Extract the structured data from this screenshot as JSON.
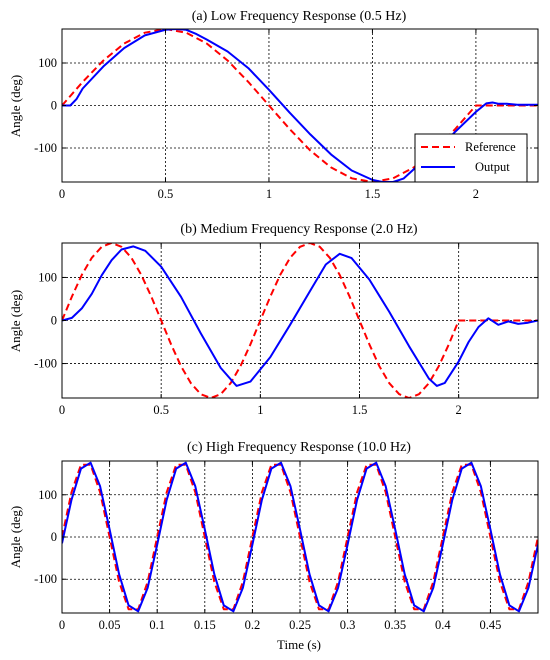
{
  "figure": {
    "colors": {
      "reference": "#ff0000",
      "output": "#0000ff",
      "grid": "#000000",
      "axes": "#000000",
      "background": "#ffffff"
    }
  },
  "chart_data": [
    {
      "type": "line",
      "title": "(a) Low Frequency Response (0.5 Hz)",
      "xlabel": "",
      "ylabel": "Angle (deg)",
      "xlim": [
        0,
        2.3
      ],
      "ylim": [
        -180,
        180
      ],
      "xticks": [
        0,
        0.5,
        1,
        1.5,
        2
      ],
      "xtick_labels": [
        "0",
        "0.5",
        "1",
        "1.5",
        "2"
      ],
      "yticks": [
        100,
        0,
        -100
      ],
      "ytick_labels": [
        "100",
        "0",
        "-100"
      ],
      "grid": true,
      "legend": {
        "placement": "lower-right",
        "entries": [
          "Reference",
          "Output"
        ]
      },
      "series": [
        {
          "name": "Reference",
          "style": "dashed",
          "color": "#ff0000",
          "x": [
            0,
            0.1,
            0.2,
            0.3,
            0.4,
            0.5,
            0.6,
            0.7,
            0.8,
            0.9,
            1.0,
            1.1,
            1.2,
            1.3,
            1.4,
            1.5,
            1.6,
            1.7,
            1.8,
            1.9,
            2.0,
            2.05,
            2.3
          ],
          "y": [
            0,
            55.6,
            105.8,
            145.6,
            171.2,
            180,
            171.2,
            145.6,
            105.8,
            55.6,
            0,
            -55.6,
            -105.8,
            -145.6,
            -171.2,
            -180,
            -171.2,
            -145.6,
            -105.8,
            -55.6,
            0,
            0,
            0
          ]
        },
        {
          "name": "Output",
          "style": "solid",
          "color": "#0000ff",
          "x": [
            0,
            0.04,
            0.07,
            0.1,
            0.2,
            0.3,
            0.4,
            0.5,
            0.55,
            0.6,
            0.65,
            0.7,
            0.8,
            0.9,
            1.0,
            1.1,
            1.2,
            1.3,
            1.4,
            1.5,
            1.55,
            1.6,
            1.65,
            1.7,
            1.8,
            1.9,
            2.0,
            2.05,
            2.08,
            2.11,
            2.15,
            2.2,
            2.3
          ],
          "y": [
            0,
            0,
            15,
            40,
            92,
            135,
            165,
            178,
            180,
            178,
            168,
            155,
            127,
            88,
            37,
            -17,
            -68,
            -115,
            -153,
            -175,
            -180,
            -180,
            -172,
            -150,
            -110,
            -62,
            -15,
            5,
            7,
            4,
            4,
            2,
            2
          ]
        }
      ]
    },
    {
      "type": "line",
      "title": "(b) Medium Frequency Response (2.0 Hz)",
      "xlabel": "",
      "ylabel": "Angle (deg)",
      "xlim": [
        0,
        2.4
      ],
      "ylim": [
        -180,
        180
      ],
      "xticks": [
        0,
        0.5,
        1,
        1.5,
        2
      ],
      "xtick_labels": [
        "0",
        "0.5",
        "1",
        "1.5",
        "2"
      ],
      "yticks": [
        100,
        0,
        -100
      ],
      "ytick_labels": [
        "100",
        "0",
        "-100"
      ],
      "grid": true,
      "series": [
        {
          "name": "Reference",
          "style": "dashed",
          "color": "#ff0000",
          "x": [
            0,
            0.05,
            0.1,
            0.15,
            0.2,
            0.25,
            0.3,
            0.35,
            0.4,
            0.45,
            0.5,
            0.55,
            0.6,
            0.65,
            0.7,
            0.75,
            0.8,
            0.85,
            0.9,
            0.95,
            1.0,
            1.05,
            1.1,
            1.15,
            1.2,
            1.25,
            1.3,
            1.35,
            1.4,
            1.45,
            1.5,
            1.55,
            1.6,
            1.65,
            1.7,
            1.75,
            1.8,
            1.85,
            1.9,
            1.95,
            2.0,
            2.4
          ],
          "y": [
            0,
            55.6,
            105.8,
            145.6,
            171.2,
            180,
            171.2,
            145.6,
            105.8,
            55.6,
            0,
            -55.6,
            -105.8,
            -145.6,
            -171.2,
            -180,
            -171.2,
            -145.6,
            -105.8,
            -55.6,
            0,
            55.6,
            105.8,
            145.6,
            171.2,
            180,
            171.2,
            145.6,
            105.8,
            55.6,
            0,
            -55.6,
            -105.8,
            -145.6,
            -171.2,
            -180,
            -171.2,
            -145.6,
            -105.8,
            -55.6,
            0,
            0
          ]
        },
        {
          "name": "Output",
          "style": "solid",
          "color": "#0000ff",
          "x": [
            0,
            0.05,
            0.1,
            0.15,
            0.2,
            0.25,
            0.3,
            0.36,
            0.42,
            0.5,
            0.6,
            0.7,
            0.8,
            0.88,
            0.95,
            1.05,
            1.15,
            1.25,
            1.33,
            1.4,
            1.46,
            1.55,
            1.65,
            1.75,
            1.85,
            1.89,
            1.93,
            2.0,
            2.05,
            2.1,
            2.15,
            2.2,
            2.25,
            2.3,
            2.35,
            2.4
          ],
          "y": [
            0,
            6,
            28,
            62,
            105,
            140,
            165,
            172,
            162,
            125,
            55,
            -30,
            -110,
            -152,
            -142,
            -85,
            -10,
            68,
            130,
            155,
            145,
            95,
            20,
            -60,
            -135,
            -152,
            -145,
            -95,
            -50,
            -15,
            5,
            -10,
            -2,
            -8,
            -5,
            0
          ]
        }
      ]
    },
    {
      "type": "line",
      "title": "(c) High Frequency Response (10.0 Hz)",
      "xlabel": "Time (s)",
      "ylabel": "Angle (deg)",
      "xlim": [
        0,
        0.5
      ],
      "ylim": [
        -180,
        180
      ],
      "xticks": [
        0,
        0.05,
        0.1,
        0.15,
        0.2,
        0.25,
        0.3,
        0.35,
        0.4,
        0.45
      ],
      "xtick_labels": [
        "0",
        "0.05",
        "0.1",
        "0.15",
        "0.2",
        "0.25",
        "0.3",
        "0.35",
        "0.4",
        "0.45"
      ],
      "yticks": [
        100,
        0,
        -100
      ],
      "ytick_labels": [
        "100",
        "0",
        "-100"
      ],
      "grid": true,
      "series": [
        {
          "name": "Reference",
          "style": "dashed",
          "color": "#ff0000",
          "x": [
            0,
            0.01,
            0.02,
            0.03,
            0.04,
            0.05,
            0.06,
            0.07,
            0.08,
            0.09,
            0.1,
            0.11,
            0.12,
            0.13,
            0.14,
            0.15,
            0.16,
            0.17,
            0.18,
            0.19,
            0.2,
            0.21,
            0.22,
            0.23,
            0.24,
            0.25,
            0.26,
            0.27,
            0.28,
            0.29,
            0.3,
            0.31,
            0.32,
            0.33,
            0.34,
            0.35,
            0.36,
            0.37,
            0.38,
            0.39,
            0.4,
            0.41,
            0.42,
            0.43,
            0.44,
            0.45,
            0.46,
            0.47,
            0.48,
            0.49,
            0.5
          ],
          "y": [
            0,
            105.8,
            171.2,
            171.2,
            105.8,
            0,
            -105.8,
            -171.2,
            -171.2,
            -105.8,
            0,
            105.8,
            171.2,
            171.2,
            105.8,
            0,
            -105.8,
            -171.2,
            -171.2,
            -105.8,
            0,
            105.8,
            171.2,
            171.2,
            105.8,
            0,
            -105.8,
            -171.2,
            -171.2,
            -105.8,
            0,
            105.8,
            171.2,
            171.2,
            105.8,
            0,
            -105.8,
            -171.2,
            -171.2,
            -105.8,
            0,
            105.8,
            171.2,
            171.2,
            105.8,
            0,
            -105.8,
            -171.2,
            -171.2,
            -105.8,
            0
          ]
        },
        {
          "name": "Output",
          "style": "solid",
          "color": "#0000ff",
          "x": [
            0,
            0.01,
            0.02,
            0.03,
            0.04,
            0.05,
            0.06,
            0.07,
            0.08,
            0.09,
            0.1,
            0.11,
            0.12,
            0.13,
            0.14,
            0.15,
            0.16,
            0.17,
            0.18,
            0.19,
            0.2,
            0.21,
            0.22,
            0.23,
            0.24,
            0.25,
            0.26,
            0.27,
            0.28,
            0.29,
            0.3,
            0.31,
            0.32,
            0.33,
            0.34,
            0.35,
            0.36,
            0.37,
            0.38,
            0.39,
            0.4,
            0.41,
            0.42,
            0.43,
            0.44,
            0.45,
            0.46,
            0.47,
            0.48,
            0.49,
            0.5
          ],
          "y": [
            -15,
            88,
            162,
            176,
            120,
            18,
            -88,
            -162,
            -176,
            -120,
            -18,
            88,
            162,
            176,
            120,
            18,
            -88,
            -162,
            -176,
            -120,
            -18,
            88,
            162,
            176,
            120,
            18,
            -88,
            -162,
            -176,
            -120,
            -18,
            88,
            162,
            176,
            120,
            18,
            -88,
            -162,
            -176,
            -120,
            -18,
            88,
            162,
            176,
            120,
            18,
            -88,
            -162,
            -176,
            -120,
            -18
          ]
        }
      ]
    }
  ]
}
